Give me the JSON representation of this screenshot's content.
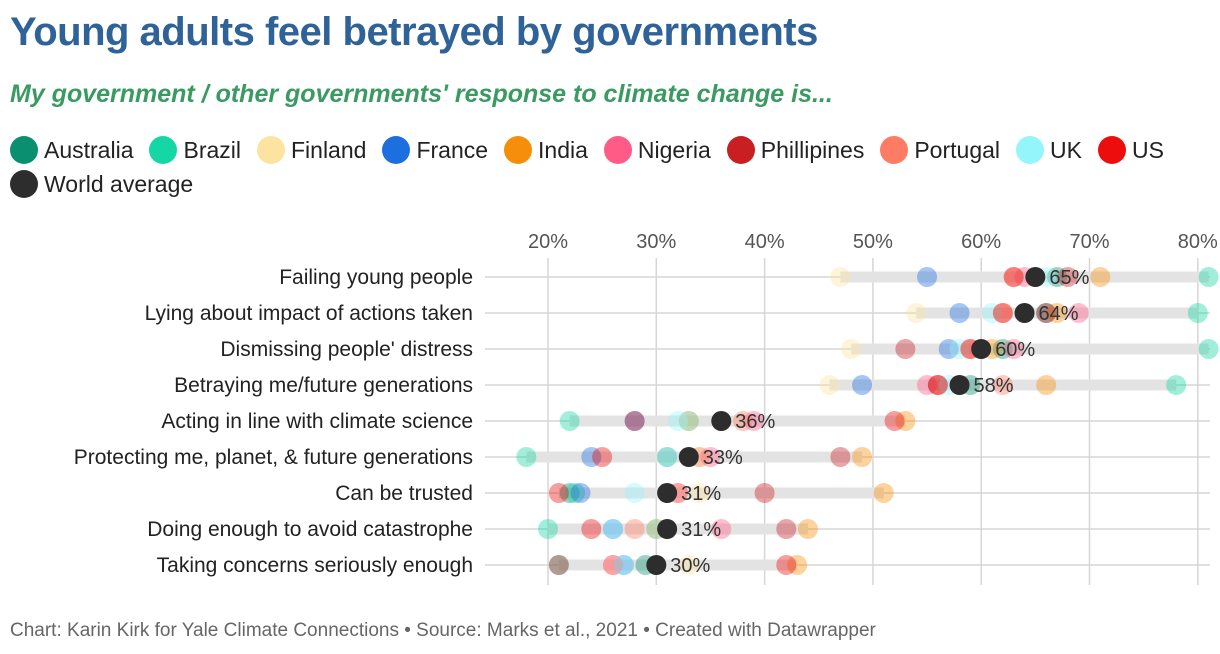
{
  "header": {
    "title": "Young adults feel betrayed by governments",
    "subtitle": "My government / other governments' response to climate change is..."
  },
  "footer": {
    "credit": "Chart: Karin Kirk for Yale Climate Connections • Source: Marks et al., 2021 • Created with Datawrapper"
  },
  "chart_data": {
    "type": "scatter",
    "subtype": "dot-range",
    "title": "Young adults feel betrayed by governments",
    "subtitle": "My government / other governments' response to climate change is...",
    "xlabel": "",
    "ylabel": "",
    "xlim": [
      17,
      81
    ],
    "x_ticks": [
      20,
      30,
      40,
      50,
      60,
      70,
      80
    ],
    "x_tick_labels": [
      "20%",
      "30%",
      "40%",
      "50%",
      "60%",
      "70%",
      "80%"
    ],
    "grid": true,
    "legend_position": "top-left",
    "series": [
      {
        "name": "Australia",
        "color": "#0a8f70"
      },
      {
        "name": "Brazil",
        "color": "#15d7a5"
      },
      {
        "name": "Finland",
        "color": "#fde3a0"
      },
      {
        "name": "France",
        "color": "#1d6fe0"
      },
      {
        "name": "India",
        "color": "#f78e0b"
      },
      {
        "name": "Nigeria",
        "color": "#ff5b86"
      },
      {
        "name": "Phillipines",
        "color": "#c91f22"
      },
      {
        "name": "Portugal",
        "color": "#fe7c63"
      },
      {
        "name": "UK",
        "color": "#94f5fa"
      },
      {
        "name": "US",
        "color": "#ee0d0d"
      },
      {
        "name": "World average",
        "color": "#2d2d2d"
      }
    ],
    "categories": [
      "Failing young people",
      "Lying about impact of actions taken",
      "Dismissing people' distress",
      "Betraying me/future generations",
      "Acting in line with climate science",
      "Protecting me, planet, & future generations",
      "Can be trusted",
      "Doing enough to avoid catastrophe",
      "Taking concerns seriously enough"
    ],
    "values": {
      "Australia": [
        67,
        66,
        62,
        59,
        33,
        31,
        22,
        30,
        29
      ],
      "Brazil": [
        81,
        80,
        81,
        78,
        22,
        18,
        22.5,
        20,
        21
      ],
      "Finland": [
        47,
        54,
        48,
        46,
        33,
        34,
        34,
        30,
        33
      ],
      "France": [
        55,
        58,
        57,
        49,
        28,
        24,
        23,
        26,
        27
      ],
      "India": [
        71,
        67,
        61,
        66,
        53,
        49,
        51,
        44,
        43
      ],
      "Nigeria": [
        64,
        69,
        63,
        55,
        39,
        35,
        32,
        36,
        26
      ],
      "Phillipines": [
        68,
        66,
        53,
        56,
        28,
        47,
        40,
        42,
        21
      ],
      "Portugal": [
        63,
        62,
        59,
        62,
        38,
        34,
        32,
        28,
        26
      ],
      "UK": [
        66,
        61,
        58,
        57,
        32,
        31,
        28,
        26,
        27
      ],
      "US": [
        63,
        62,
        59,
        56,
        52,
        25,
        21,
        24,
        42
      ],
      "World average": [
        65,
        64,
        60,
        58,
        36,
        33,
        31,
        31,
        30
      ]
    },
    "avg_labels": [
      "65%",
      "64%",
      "60%",
      "58%",
      "36%",
      "33%",
      "31%",
      "31%",
      "30%"
    ]
  }
}
